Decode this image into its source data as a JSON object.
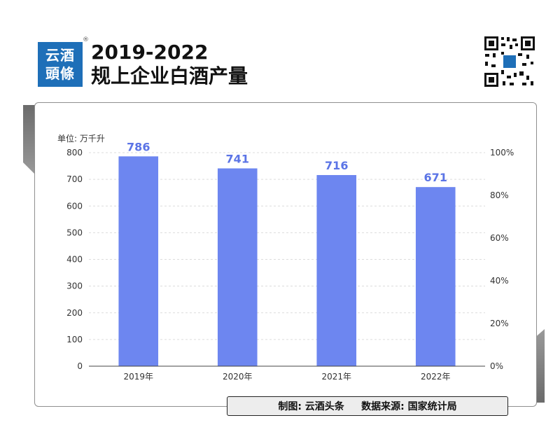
{
  "brand": {
    "logo_line1": "云酒",
    "logo_line2": "頭條",
    "registered_mark": "®"
  },
  "header": {
    "title_line1": "2019-2022",
    "title_line2": "规上企业白酒产量"
  },
  "footer": {
    "credit": "制图: 云酒头条     数据来源: 国家统计局"
  },
  "chart_data": {
    "type": "bar",
    "title": "2019-2022 规上企业白酒产量",
    "unit_label": "单位: 万千升",
    "categories": [
      "2019年",
      "2020年",
      "2021年",
      "2022年"
    ],
    "values": [
      786,
      741,
      716,
      671
    ],
    "data_labels": [
      "786",
      "741",
      "716",
      "671"
    ],
    "ylim": [
      0,
      800
    ],
    "y_ticks": [
      "0",
      "100",
      "200",
      "300",
      "400",
      "500",
      "600",
      "700",
      "800"
    ],
    "y2_ticks": [
      "0%",
      "20%",
      "40%",
      "60%",
      "80%",
      "100%"
    ],
    "bar_color": "#6d86f0",
    "label_color": "#5b74e6",
    "grid": true
  }
}
